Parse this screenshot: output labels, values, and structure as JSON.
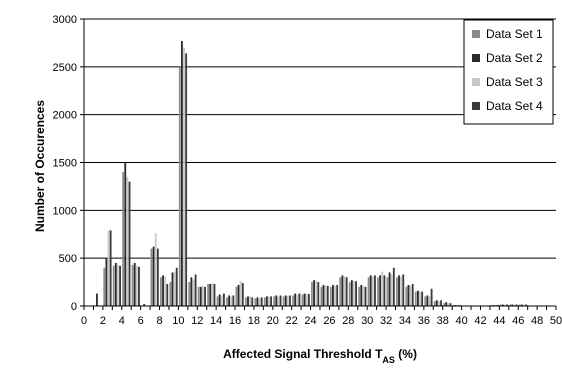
{
  "chart_data": {
    "type": "bar",
    "xlabel_main": "Affected Signal Threshold T",
    "xlabel_sub": "AS",
    "xlabel_suffix": " (%)",
    "ylabel": "Number of Occurences",
    "ylim": [
      0,
      3000
    ],
    "yticks": [
      0,
      500,
      1000,
      1500,
      2000,
      2500,
      3000
    ],
    "xlim": [
      0,
      50
    ],
    "xticks": [
      0,
      2,
      4,
      6,
      8,
      10,
      12,
      14,
      16,
      18,
      20,
      22,
      24,
      26,
      28,
      30,
      32,
      34,
      36,
      38,
      40,
      42,
      44,
      46,
      48,
      50
    ],
    "grid": "horizontal",
    "legend_position": "top-right",
    "categories": [
      0,
      1,
      2,
      3,
      4,
      5,
      6,
      7,
      8,
      9,
      10,
      11,
      12,
      13,
      14,
      15,
      16,
      17,
      18,
      19,
      20,
      21,
      22,
      23,
      24,
      25,
      26,
      27,
      28,
      29,
      30,
      31,
      32,
      33,
      34,
      35,
      36,
      37,
      38,
      39,
      40,
      41,
      42,
      43,
      44,
      45,
      46,
      47,
      48,
      49
    ],
    "series": [
      {
        "name": "Data Set 1",
        "color": "#8c8c8c",
        "values": [
          0,
          0,
          400,
          420,
          1400,
          430,
          0,
          600,
          300,
          250,
          2500,
          250,
          200,
          230,
          100,
          90,
          200,
          90,
          80,
          90,
          100,
          100,
          110,
          120,
          250,
          200,
          200,
          300,
          250,
          200,
          300,
          300,
          300,
          300,
          200,
          150,
          100,
          50,
          30,
          10,
          5,
          5,
          5,
          10,
          15,
          15,
          15,
          5,
          5,
          0
        ]
      },
      {
        "name": "Data Set 2",
        "color": "#2a2a2a",
        "values": [
          0,
          130,
          500,
          450,
          1500,
          450,
          20,
          620,
          320,
          350,
          2770,
          300,
          200,
          230,
          120,
          110,
          220,
          100,
          90,
          100,
          110,
          110,
          130,
          130,
          270,
          220,
          220,
          320,
          270,
          220,
          320,
          320,
          350,
          320,
          220,
          160,
          110,
          60,
          40,
          10,
          5,
          5,
          5,
          10,
          15,
          15,
          15,
          5,
          5,
          0
        ]
      },
      {
        "name": "Data Set 3",
        "color": "#c8c8c8",
        "values": [
          0,
          0,
          790,
          430,
          1350,
          420,
          0,
          760,
          310,
          360,
          2700,
          280,
          210,
          240,
          110,
          100,
          260,
          100,
          80,
          100,
          100,
          105,
          120,
          125,
          260,
          210,
          210,
          310,
          260,
          210,
          310,
          360,
          330,
          310,
          210,
          150,
          100,
          50,
          30,
          10,
          5,
          5,
          5,
          10,
          15,
          15,
          15,
          5,
          5,
          0
        ]
      },
      {
        "name": "Data Set 4",
        "color": "#3a3a3a",
        "values": [
          0,
          0,
          790,
          420,
          1300,
          410,
          0,
          600,
          230,
          400,
          2640,
          330,
          200,
          230,
          130,
          110,
          240,
          90,
          90,
          100,
          110,
          110,
          130,
          125,
          250,
          210,
          220,
          300,
          260,
          200,
          320,
          320,
          400,
          330,
          230,
          150,
          180,
          60,
          30,
          10,
          5,
          5,
          5,
          10,
          15,
          15,
          15,
          5,
          5,
          0
        ]
      }
    ]
  }
}
